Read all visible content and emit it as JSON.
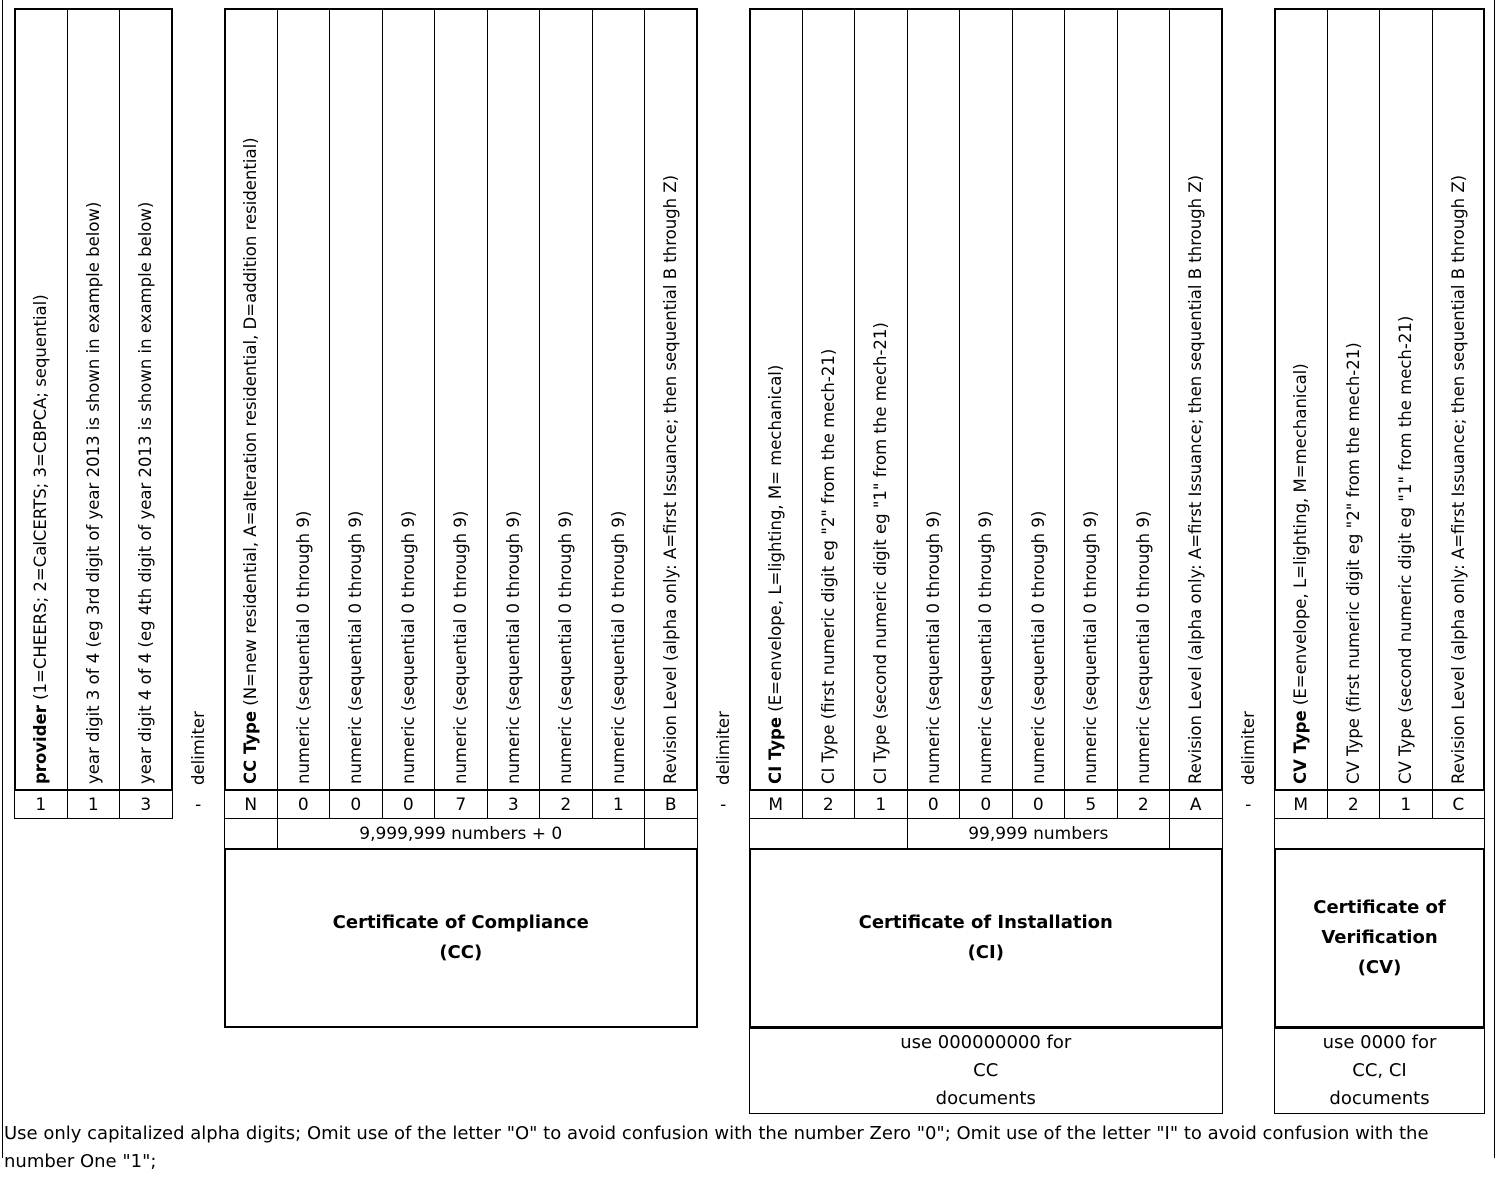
{
  "columns": [
    {
      "bold": "provider",
      "text": " (1=CHEERS; 2=CalCERTS; 3=CBPCA; sequential)",
      "value": "1"
    },
    {
      "text": "year  digit 3 of 4 (eg 3rd digit of year 2013 is shown in example below)",
      "value": "1"
    },
    {
      "text": "year  digit 4 of 4 (eg 4th digit of year 2013 is shown in example below)",
      "value": "3"
    },
    {
      "text": "delimiter",
      "value": "-"
    },
    {
      "bold": "CC Type",
      "text": " (N=new residential, A=alteration residential, D=addition residential)",
      "value": "N"
    },
    {
      "text": "numeric  (sequential  0 through 9)",
      "value": "0"
    },
    {
      "text": "numeric  (sequential  0 through 9)",
      "value": "0"
    },
    {
      "text": "numeric  (sequential  0 through 9)",
      "value": "0"
    },
    {
      "text": "numeric  (sequential  0 through 9)",
      "value": "7"
    },
    {
      "text": "numeric  (sequential  0 through 9)",
      "value": "3"
    },
    {
      "text": "numeric  (sequential  0 through 9)",
      "value": "2"
    },
    {
      "text": "numeric  (sequential  0 through 9)",
      "value": "1"
    },
    {
      "text": "Revision Level  (alpha only:  A=first Issuance; then sequential B through Z)",
      "value": "B"
    },
    {
      "text": "delimiter",
      "value": "-"
    },
    {
      "bold": "CI Type",
      "text": "  (E=envelope, L=lighting, M= mechanical)",
      "value": "M"
    },
    {
      "text": "CI Type  (first numeric digit  eg \"2\" from the mech-21)",
      "value": "2"
    },
    {
      "text": "CI Type  (second numeric digit  eg \"1\" from the mech-21)",
      "value": "1"
    },
    {
      "text": "numeric  (sequential  0 through 9)",
      "value": "0"
    },
    {
      "text": "numeric  (sequential  0 through 9)",
      "value": "0"
    },
    {
      "text": "numeric  (sequential  0 through 9)",
      "value": "0"
    },
    {
      "text": "numeric  (sequential  0 through 9)",
      "value": "5"
    },
    {
      "text": "numeric  (sequential  0 through 9)",
      "value": "2"
    },
    {
      "text": "Revision Level  (alpha only:  A=first Issuance; then sequential B through Z)",
      "value": "A"
    },
    {
      "text": "delimiter",
      "value": "-"
    },
    {
      "bold": "CV Type",
      "text": "  (E=envelope, L=lighting, M=mechanical)",
      "value": "M"
    },
    {
      "text": "CV Type  (first numeric digit  eg \"2\" from the mech-21)",
      "value": "2"
    },
    {
      "text": "CV Type  (second numeric digit  eg \"1\" from the mech-21)",
      "value": "1"
    },
    {
      "text": "Revision Level  (alpha only:  A=first Issuance; then sequential B through Z)",
      "value": "C"
    }
  ],
  "ranges": [
    {
      "label": "9,999,999 numbers + 0"
    },
    {
      "label": "99,999 numbers"
    }
  ],
  "certificates": [
    {
      "title": "Certificate of Compliance",
      "abbr": "(CC)"
    },
    {
      "title": "Certificate of Installation",
      "abbr": "(CI)"
    },
    {
      "title": "Certificate of Verification",
      "abbr": "(CV)"
    }
  ],
  "usage_notes": [
    {
      "lines": [
        "use 000000000 for",
        "CC",
        "documents"
      ]
    },
    {
      "lines": [
        "use 0000 for",
        "CC, CI",
        "documents"
      ]
    }
  ],
  "footer": "Use only capitalized alpha digits;  Omit use of the letter \"O\" to avoid confusion with the number Zero \"0\";    Omit use of the letter \"I\" to avoid confusion with the number One \"1\";"
}
